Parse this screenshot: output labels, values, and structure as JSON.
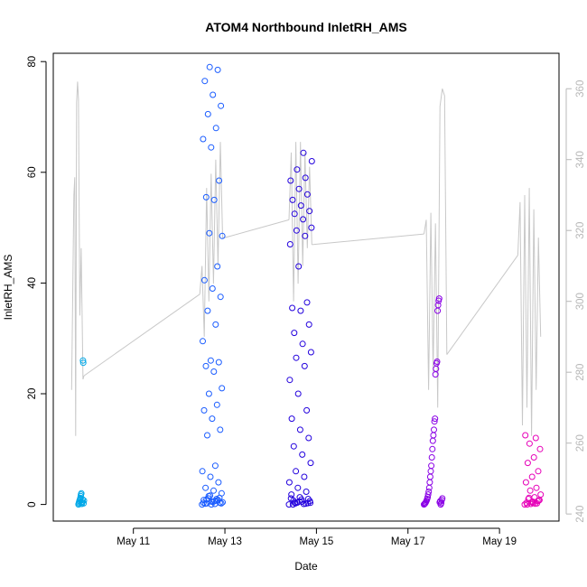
{
  "chart_data": {
    "type": "scatter",
    "title": "ATOM4 Northbound InletRH_AMS",
    "xlabel": "Date",
    "ylabel": "InletRH_AMS",
    "x_ticks": [
      "May 11",
      "May 13",
      "May 15",
      "May 17",
      "May 19"
    ],
    "x_tick_days": [
      11,
      13,
      15,
      17,
      19
    ],
    "xlim": [
      9.25,
      20.3
    ],
    "ylim": [
      -3.0,
      81.5
    ],
    "y_ticks": [
      0,
      20,
      40,
      60,
      80
    ],
    "y2_ticks": [
      240,
      260,
      280,
      300,
      320,
      340,
      360
    ],
    "y2lim": [
      238,
      370
    ],
    "grid": false,
    "legend": "none",
    "colors": {
      "line": "#c8c8c8",
      "axis": "#000000",
      "axis_right": "#b8b8b8",
      "scatter_gradient": [
        "#00a8e8",
        "#1a5cff",
        "#2200dd",
        "#8a00e6",
        "#e600b8"
      ]
    },
    "scatter_groups": [
      {
        "day_range": [
          9.8,
          9.92
        ],
        "color": "#00a8e8",
        "values": [
          0,
          0.2,
          0.4,
          0.6,
          0.8,
          1.0,
          1.2,
          1.5,
          1.8,
          2.0,
          0.1,
          0.3,
          0.5,
          0.9,
          26.0,
          25.6,
          0.2,
          0.7
        ]
      },
      {
        "day_range": [
          12.5,
          12.95
        ],
        "color": "#1a5cff",
        "values": [
          0,
          0.1,
          0.2,
          0.3,
          0.5,
          0.8,
          1.0,
          1.5,
          2.0,
          2.5,
          3.0,
          4.0,
          5.0,
          6.0,
          7.0,
          12.5,
          13.5,
          15.5,
          17.0,
          18.0,
          20.0,
          21.0,
          24.0,
          25.0,
          25.7,
          26.0,
          29.5,
          32.5,
          35.0,
          37.5,
          39.0,
          40.5,
          43.0,
          49.0,
          48.5,
          55.0,
          55.5,
          58.5,
          64.5,
          66.0,
          68.0,
          70.5,
          72.0,
          74.0,
          76.5,
          78.5,
          79.0,
          0.4,
          0.6,
          0.9,
          1.2,
          0.0,
          0.3,
          0.7,
          1.1,
          0.2,
          0.5,
          0.15,
          0.8,
          1.6
        ]
      },
      {
        "day_range": [
          14.4,
          14.9
        ],
        "color": "#2200dd",
        "values": [
          0,
          0.1,
          0.2,
          0.3,
          0.5,
          0.7,
          1.0,
          1.3,
          1.8,
          2.3,
          3.0,
          4.0,
          5.0,
          6.0,
          7.5,
          9.0,
          10.5,
          12.0,
          13.5,
          15.5,
          17.0,
          20.0,
          22.5,
          25.0,
          26.5,
          27.5,
          29.0,
          31.0,
          32.5,
          35.0,
          35.5,
          36.5,
          43.0,
          47.0,
          48.5,
          49.5,
          50.0,
          51.5,
          52.5,
          53.0,
          54.0,
          55.0,
          56.0,
          57.0,
          58.5,
          59.0,
          60.5,
          62.0,
          63.5,
          0.4,
          0.6,
          0.9,
          0.0,
          0.25,
          0.55,
          1.1,
          0.15,
          0.35
        ]
      },
      {
        "day_range": [
          17.35,
          17.75
        ],
        "color": "#8a00e6",
        "values": [
          0,
          0.1,
          0.2,
          0.3,
          0.5,
          0.7,
          1.0,
          1.3,
          1.8,
          2.3,
          3.0,
          4.0,
          5.0,
          6.0,
          7.0,
          8.5,
          10.0,
          11.5,
          12.5,
          13.5,
          15.0,
          15.5,
          23.5,
          24.5,
          25.5,
          25.8,
          35.0,
          36.0,
          36.8,
          37.2,
          0.4,
          0.6,
          0.0,
          0.25,
          0.8,
          1.1
        ]
      },
      {
        "day_range": [
          19.55,
          19.9
        ],
        "color": "#e600b8",
        "values": [
          0,
          0.1,
          0.2,
          0.3,
          0.5,
          0.7,
          1.0,
          1.3,
          1.8,
          2.5,
          3.0,
          4.0,
          5.0,
          6.0,
          7.5,
          8.5,
          10.0,
          11.0,
          12.0,
          12.5,
          0.4,
          0.6,
          0.0,
          0.25,
          0.8,
          1.2,
          0.15
        ]
      }
    ],
    "line_series": {
      "axis": "right",
      "segments": [
        {
          "x": [
            9.65,
            9.7,
            9.72,
            9.74,
            9.76,
            9.78,
            9.8,
            9.83,
            9.86,
            9.9,
            9.92
          ],
          "y": [
            275,
            330,
            335,
            262,
            356,
            362,
            357,
            296,
            315,
            278,
            279
          ]
        },
        {
          "x": [
            9.92,
            12.45
          ],
          "y": [
            279,
            302
          ]
        },
        {
          "x": [
            12.45,
            12.5,
            12.55,
            12.6,
            12.65,
            12.7,
            12.75,
            12.8,
            12.85,
            12.9,
            12.95,
            13.0
          ],
          "y": [
            302,
            310,
            290,
            332,
            300,
            336,
            305,
            340,
            310,
            345,
            318,
            318
          ]
        },
        {
          "x": [
            13.0,
            14.4
          ],
          "y": [
            318,
            323
          ]
        },
        {
          "x": [
            14.4,
            14.45,
            14.5,
            14.55,
            14.6,
            14.65,
            14.7,
            14.75,
            14.8,
            14.85,
            14.9
          ],
          "y": [
            323,
            342,
            300,
            345,
            305,
            345,
            310,
            342,
            315,
            338,
            316
          ]
        },
        {
          "x": [
            14.9,
            17.35
          ],
          "y": [
            316,
            319
          ]
        },
        {
          "x": [
            17.35,
            17.4,
            17.45,
            17.5,
            17.55,
            17.6,
            17.65,
            17.7,
            17.75,
            17.8,
            17.85
          ],
          "y": [
            319,
            323,
            275,
            325,
            280,
            322,
            270,
            355,
            360,
            358,
            285
          ]
        },
        {
          "x": [
            17.85,
            19.4
          ],
          "y": [
            285,
            313
          ]
        },
        {
          "x": [
            19.4,
            19.45,
            19.5,
            19.55,
            19.6,
            19.65,
            19.7,
            19.75,
            19.8,
            19.85,
            19.9
          ],
          "y": [
            313,
            328,
            265,
            330,
            270,
            332,
            262,
            326,
            275,
            318,
            290
          ]
        }
      ]
    }
  }
}
